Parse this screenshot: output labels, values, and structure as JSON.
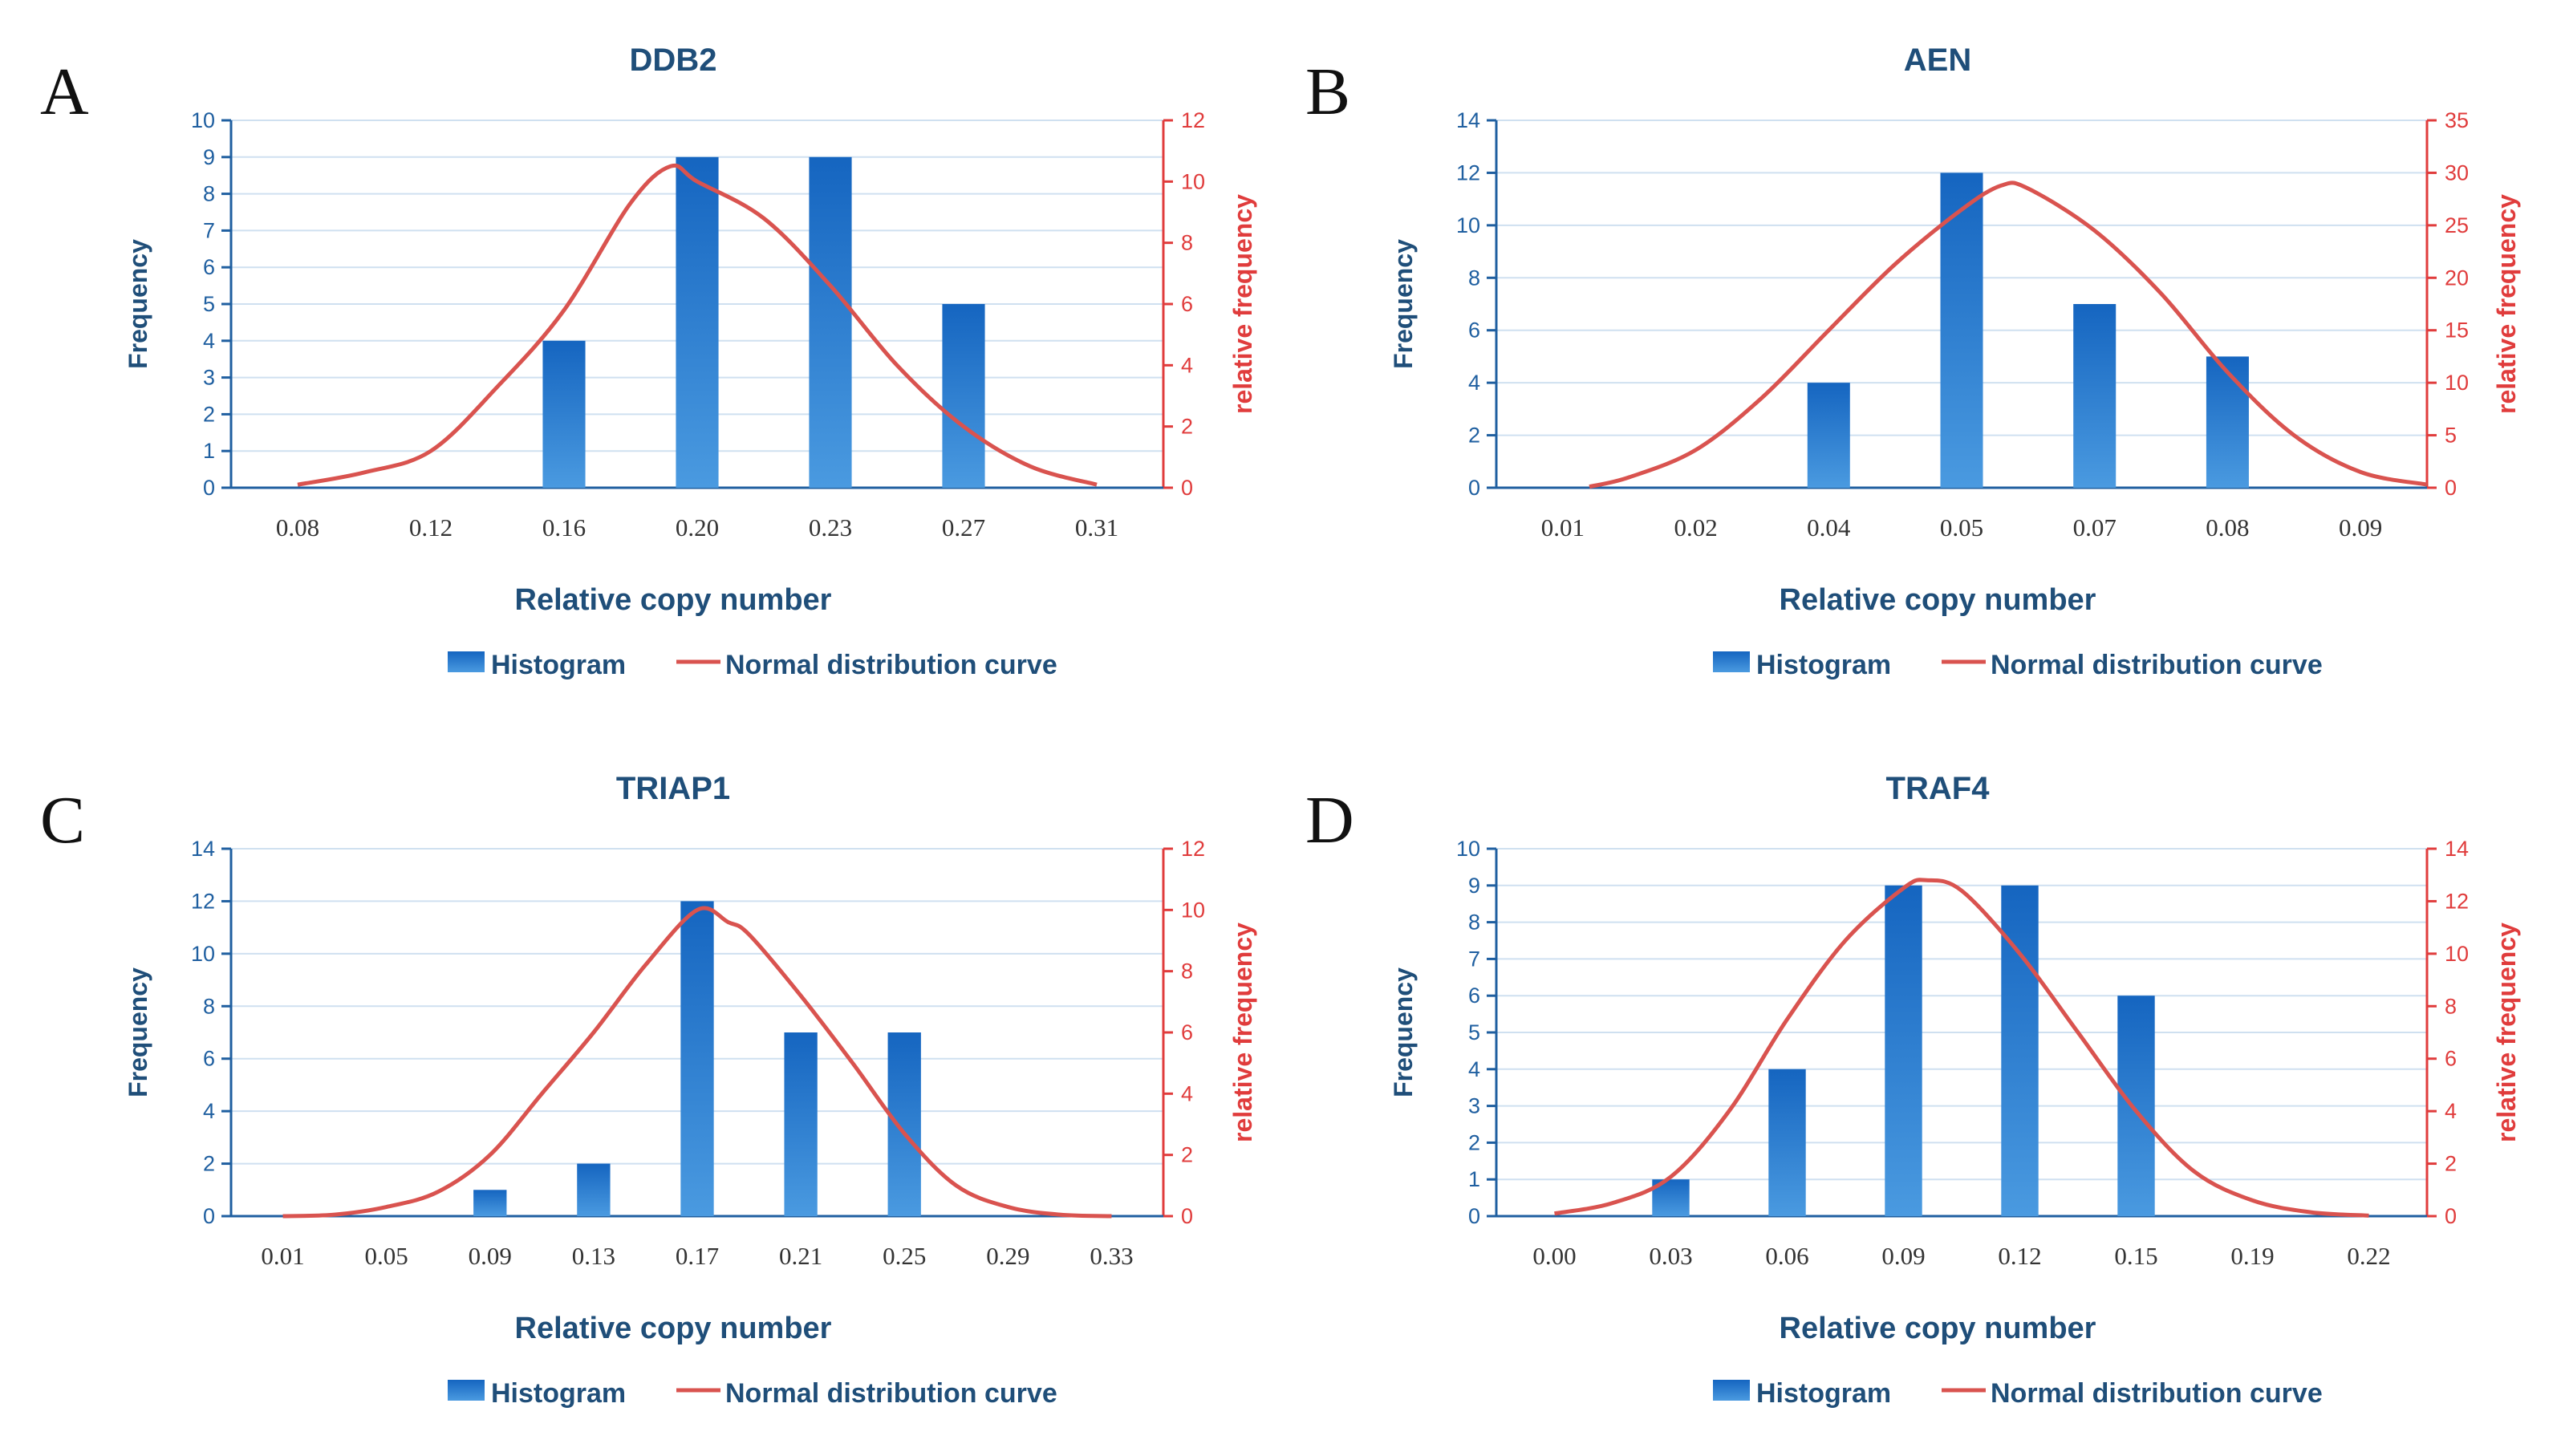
{
  "colors": {
    "bar": "#1565c0",
    "bar_light": "#4a9ae0",
    "curve": "#d9534f",
    "grid": "#cfe0f0",
    "left_axis": "#1f5fa0",
    "right_axis": "#e03c3c"
  },
  "chart_data": [
    {
      "type": "bar",
      "panel": "A",
      "title": "DDB2",
      "xlabel": "Relative copy number",
      "ylabel": "Frequency",
      "y2label": "relative frequency",
      "categories": [
        "0.08",
        "0.12",
        "0.16",
        "0.20",
        "0.23",
        "0.27",
        "0.31"
      ],
      "series": [
        {
          "name": "Histogram",
          "type": "bar",
          "axis": "left",
          "values": [
            0,
            0,
            4,
            9,
            9,
            5,
            0
          ]
        },
        {
          "name": "Normal distribution curve",
          "type": "line",
          "axis": "right",
          "points": [
            [
              0.0,
              0.1
            ],
            [
              0.5,
              0.5
            ],
            [
              1.0,
              1.2
            ],
            [
              1.5,
              3.3
            ],
            [
              2.0,
              5.8
            ],
            [
              2.5,
              9.3
            ],
            [
              2.8,
              10.5
            ],
            [
              3.0,
              10.0
            ],
            [
              3.5,
              8.8
            ],
            [
              4.0,
              6.6
            ],
            [
              4.5,
              4.0
            ],
            [
              5.0,
              2.0
            ],
            [
              5.5,
              0.7
            ],
            [
              6.0,
              0.1
            ]
          ]
        }
      ],
      "ylim": [
        0,
        10
      ],
      "yticks": [
        0,
        1,
        2,
        3,
        4,
        5,
        6,
        7,
        8,
        9,
        10
      ],
      "y2lim": [
        0,
        12
      ],
      "y2ticks": [
        0,
        2,
        4,
        6,
        8,
        10,
        12
      ],
      "legend": "bottom",
      "legend_entries": [
        "Histogram",
        "Normal distribution curve"
      ]
    },
    {
      "type": "bar",
      "panel": "B",
      "title": "AEN",
      "xlabel": "Relative copy number",
      "ylabel": "Frequency",
      "y2label": "relative frequency",
      "categories": [
        "0.01",
        "0.02",
        "0.04",
        "0.05",
        "0.07",
        "0.08",
        "0.09"
      ],
      "series": [
        {
          "name": "Histogram",
          "type": "bar",
          "axis": "left",
          "values": [
            0,
            0,
            4,
            12,
            7,
            5,
            0
          ]
        },
        {
          "name": "Normal distribution curve",
          "type": "line",
          "axis": "right",
          "points": [
            [
              0.2,
              0.1
            ],
            [
              0.5,
              1.0
            ],
            [
              1.0,
              3.6
            ],
            [
              1.5,
              8.6
            ],
            [
              2.0,
              15.0
            ],
            [
              2.5,
              21.3
            ],
            [
              3.0,
              26.5
            ],
            [
              3.3,
              28.8
            ],
            [
              3.5,
              28.5
            ],
            [
              4.0,
              24.5
            ],
            [
              4.5,
              18.5
            ],
            [
              5.0,
              11.0
            ],
            [
              5.5,
              5.0
            ],
            [
              6.0,
              1.5
            ],
            [
              6.5,
              0.3
            ]
          ]
        }
      ],
      "ylim": [
        0,
        14
      ],
      "yticks": [
        0,
        2,
        4,
        6,
        8,
        10,
        12,
        14
      ],
      "y2lim": [
        0,
        35
      ],
      "y2ticks": [
        0,
        5,
        10,
        15,
        20,
        25,
        30,
        35
      ],
      "legend": "bottom",
      "legend_entries": [
        "Histogram",
        "Normal distribution curve"
      ]
    },
    {
      "type": "bar",
      "panel": "C",
      "title": "TRIAP1",
      "xlabel": "Relative copy number",
      "ylabel": "Frequency",
      "y2label": "relative frequency",
      "categories": [
        "0.01",
        "0.05",
        "0.09",
        "0.13",
        "0.17",
        "0.21",
        "0.25",
        "0.29",
        "0.33"
      ],
      "series": [
        {
          "name": "Histogram",
          "type": "bar",
          "axis": "left",
          "values": [
            0,
            0,
            1,
            2,
            12,
            7,
            7,
            0,
            0
          ]
        },
        {
          "name": "Normal distribution curve",
          "type": "line",
          "axis": "right",
          "points": [
            [
              0.0,
              0.0
            ],
            [
              0.5,
              0.05
            ],
            [
              1.0,
              0.3
            ],
            [
              1.5,
              0.8
            ],
            [
              2.0,
              2.0
            ],
            [
              2.5,
              4.0
            ],
            [
              3.0,
              6.0
            ],
            [
              3.5,
              8.2
            ],
            [
              4.0,
              10.0
            ],
            [
              4.3,
              9.6
            ],
            [
              4.5,
              9.2
            ],
            [
              5.0,
              7.2
            ],
            [
              5.5,
              5.0
            ],
            [
              6.0,
              2.7
            ],
            [
              6.5,
              1.0
            ],
            [
              7.0,
              0.3
            ],
            [
              7.5,
              0.05
            ],
            [
              8.0,
              0.0
            ]
          ]
        }
      ],
      "ylim": [
        0,
        14
      ],
      "yticks": [
        0,
        2,
        4,
        6,
        8,
        10,
        12,
        14
      ],
      "y2lim": [
        0,
        12
      ],
      "y2ticks": [
        0,
        2,
        4,
        6,
        8,
        10,
        12
      ],
      "legend": "bottom",
      "legend_entries": [
        "Histogram",
        "Normal distribution curve"
      ]
    },
    {
      "type": "bar",
      "panel": "D",
      "title": "TRAF4",
      "xlabel": "Relative copy number",
      "ylabel": "Frequency",
      "y2label": "relative frequency",
      "categories": [
        "0.00",
        "0.03",
        "0.06",
        "0.09",
        "0.12",
        "0.15",
        "0.19",
        "0.22"
      ],
      "series": [
        {
          "name": "Histogram",
          "type": "bar",
          "axis": "left",
          "values": [
            0,
            1,
            4,
            9,
            9,
            6,
            0,
            0
          ]
        },
        {
          "name": "Normal distribution curve",
          "type": "line",
          "axis": "right",
          "points": [
            [
              0.0,
              0.1
            ],
            [
              0.5,
              0.5
            ],
            [
              1.0,
              1.5
            ],
            [
              1.5,
              4.0
            ],
            [
              2.0,
              7.5
            ],
            [
              2.5,
              10.5
            ],
            [
              3.0,
              12.5
            ],
            [
              3.2,
              12.8
            ],
            [
              3.5,
              12.4
            ],
            [
              4.0,
              10.0
            ],
            [
              4.5,
              7.0
            ],
            [
              5.0,
              4.0
            ],
            [
              5.5,
              1.7
            ],
            [
              6.0,
              0.6
            ],
            [
              6.5,
              0.15
            ],
            [
              7.0,
              0.02
            ]
          ]
        }
      ],
      "ylim": [
        0,
        10
      ],
      "yticks": [
        0,
        1,
        2,
        3,
        4,
        5,
        6,
        7,
        8,
        9,
        10
      ],
      "y2lim": [
        0,
        14
      ],
      "y2ticks": [
        0,
        2,
        4,
        6,
        8,
        10,
        12,
        14
      ],
      "legend": "bottom",
      "legend_entries": [
        "Histogram",
        "Normal distribution curve"
      ]
    }
  ]
}
